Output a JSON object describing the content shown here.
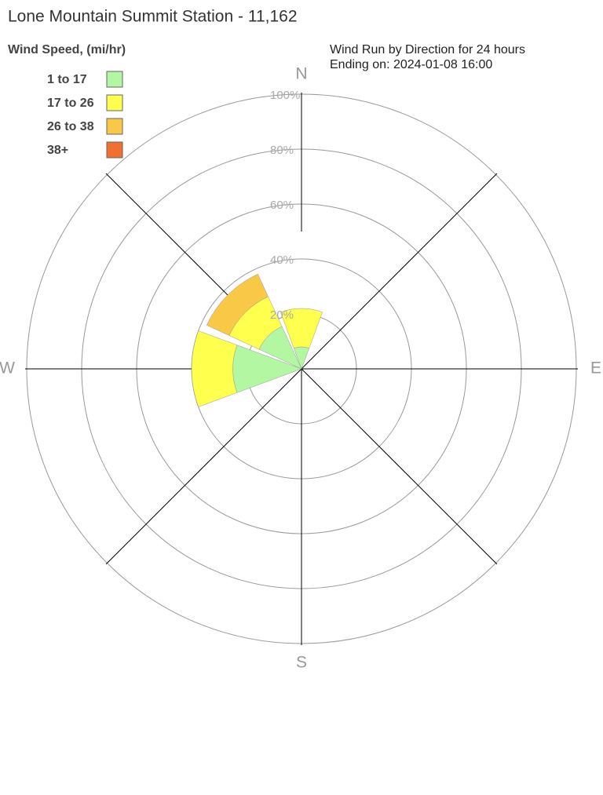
{
  "chart_data": {
    "type": "windrose",
    "title": "Lone Mountain Summit Station - 11,162",
    "legend_title": "Wind Speed, (mi/hr)",
    "subtitle": [
      "Wind Run by Direction for 24 hours",
      "Ending on: 2024-01-08 16:00"
    ],
    "categories": [
      "N",
      null,
      "E",
      null,
      "S",
      null,
      "W",
      null
    ],
    "series": [
      {
        "name": "1 to 17",
        "color": "#b3f7a3",
        "values": [
          8,
          0,
          0,
          0,
          0,
          0,
          25,
          17
        ]
      },
      {
        "name": "17 to 26",
        "color": "#ffff4d",
        "values": [
          14,
          0,
          0,
          0,
          0,
          0,
          15,
          12
        ]
      },
      {
        "name": "26 to 38",
        "color": "#f9c846",
        "values": [
          0,
          0,
          0,
          0,
          0,
          0,
          0,
          9
        ]
      },
      {
        "name": "38+",
        "color": "#f07030",
        "values": [
          0,
          0,
          0,
          0,
          0,
          0,
          0,
          0
        ]
      }
    ],
    "rlim": [
      0,
      100
    ],
    "rticks": [
      {
        "value": 20,
        "label": "20%"
      },
      {
        "value": 40,
        "label": "40%"
      },
      {
        "value": 60,
        "label": "60%"
      },
      {
        "value": 80,
        "label": "80%"
      },
      {
        "value": 100,
        "label": "100%"
      }
    ],
    "grid": true
  }
}
